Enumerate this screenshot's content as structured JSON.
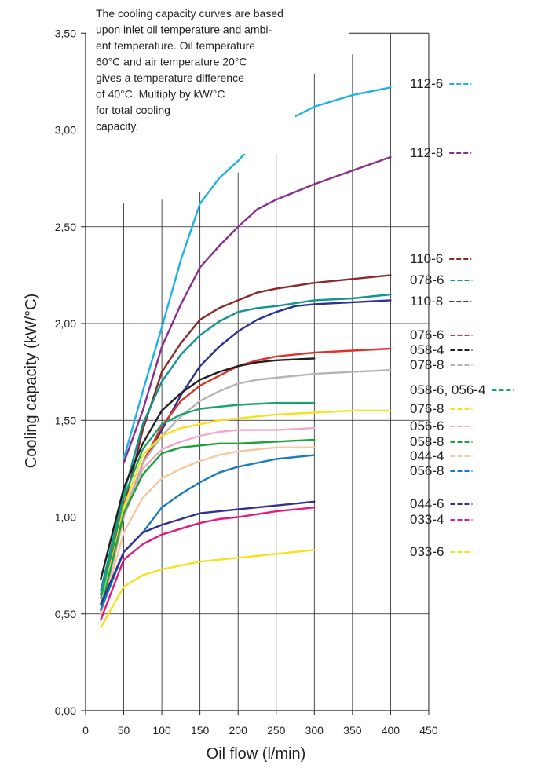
{
  "chart_data": {
    "type": "line",
    "xlabel": "Oil flow (l/min)",
    "ylabel": "Cooling capacity (kW/°C)",
    "xlim": [
      0,
      450
    ],
    "ylim": [
      0,
      3.5
    ],
    "x_ticks": [
      "0",
      "50",
      "100",
      "150",
      "200",
      "250",
      "300",
      "350",
      "400",
      "450"
    ],
    "y_ticks": [
      "0,00",
      "0,50",
      "1,00",
      "1,50",
      "2,00",
      "2,50",
      "3,00",
      "3,50"
    ],
    "grid": true,
    "legend_placement": "right",
    "annotation": [
      "The cooling capacity curves are based",
      "upon inlet oil temperature and ambi-",
      "ent temperature. Oil temperature",
      "60°C and air temperature 20°C",
      "gives a temperature difference",
      "of 40°C. Multiply by kW/°C",
      "for total cooling",
      "capacity."
    ],
    "series": [
      {
        "name": "112-6",
        "color": "#1fb3e5",
        "x": [
          50,
          75,
          100,
          125,
          150,
          175,
          200,
          225,
          250,
          275,
          300,
          350,
          400
        ],
        "y": [
          1.3,
          1.65,
          1.98,
          2.33,
          2.62,
          2.75,
          2.84,
          2.95,
          3.0,
          3.07,
          3.12,
          3.18,
          3.22
        ]
      },
      {
        "name": "112-8",
        "color": "#8b2f8f",
        "x": [
          50,
          75,
          100,
          125,
          150,
          175,
          200,
          225,
          250,
          275,
          300,
          350,
          400
        ],
        "y": [
          1.28,
          1.55,
          1.88,
          2.1,
          2.29,
          2.4,
          2.5,
          2.59,
          2.64,
          2.68,
          2.72,
          2.79,
          2.86
        ]
      },
      {
        "name": "110-6",
        "color": "#8a2a2b",
        "x": [
          20,
          50,
          75,
          100,
          125,
          150,
          175,
          200,
          225,
          250,
          300,
          350,
          400
        ],
        "y": [
          0.6,
          1.05,
          1.45,
          1.75,
          1.9,
          2.02,
          2.08,
          2.12,
          2.16,
          2.18,
          2.21,
          2.23,
          2.25
        ]
      },
      {
        "name": "078-6",
        "color": "#12958f",
        "x": [
          20,
          50,
          75,
          100,
          125,
          150,
          175,
          200,
          225,
          250,
          300,
          350,
          400
        ],
        "y": [
          0.62,
          1.12,
          1.48,
          1.7,
          1.84,
          1.94,
          2.01,
          2.06,
          2.08,
          2.09,
          2.12,
          2.13,
          2.15
        ]
      },
      {
        "name": "110-8",
        "color": "#2e3192",
        "x": [
          20,
          50,
          75,
          100,
          125,
          150,
          175,
          200,
          225,
          250,
          275,
          300,
          350,
          400
        ],
        "y": [
          0.55,
          1.0,
          1.28,
          1.45,
          1.63,
          1.78,
          1.88,
          1.96,
          2.02,
          2.06,
          2.09,
          2.1,
          2.11,
          2.12
        ]
      },
      {
        "name": "076-6",
        "color": "#e0322b",
        "x": [
          20,
          50,
          75,
          100,
          125,
          150,
          175,
          200,
          225,
          250,
          300,
          350,
          400
        ],
        "y": [
          0.5,
          1.0,
          1.28,
          1.47,
          1.6,
          1.68,
          1.73,
          1.78,
          1.81,
          1.83,
          1.85,
          1.86,
          1.87
        ]
      },
      {
        "name": "058-4",
        "color": "#231f20",
        "x": [
          20,
          50,
          75,
          100,
          125,
          150,
          175,
          200,
          225,
          250,
          300
        ],
        "y": [
          0.68,
          1.15,
          1.38,
          1.55,
          1.64,
          1.71,
          1.75,
          1.78,
          1.8,
          1.81,
          1.82
        ]
      },
      {
        "name": "078-8",
        "color": "#b5b5b5",
        "x": [
          20,
          50,
          75,
          100,
          125,
          150,
          175,
          200,
          225,
          250,
          300,
          350,
          400
        ],
        "y": [
          0.55,
          1.02,
          1.28,
          1.42,
          1.52,
          1.6,
          1.65,
          1.69,
          1.71,
          1.72,
          1.74,
          1.75,
          1.76
        ]
      },
      {
        "name": "058-6, 056-4",
        "color": "#1aa36b",
        "x": [
          20,
          50,
          75,
          100,
          125,
          150,
          175,
          200,
          250,
          300
        ],
        "y": [
          0.58,
          1.1,
          1.35,
          1.48,
          1.53,
          1.56,
          1.57,
          1.58,
          1.59,
          1.59
        ]
      },
      {
        "name": "076-8",
        "color": "#f5e21f",
        "x": [
          20,
          50,
          75,
          100,
          125,
          150,
          175,
          200,
          250,
          300,
          350,
          400
        ],
        "y": [
          0.52,
          1.05,
          1.32,
          1.42,
          1.46,
          1.48,
          1.5,
          1.51,
          1.53,
          1.54,
          1.55,
          1.55
        ]
      },
      {
        "name": "056-6",
        "color": "#f0a8c8",
        "x": [
          20,
          50,
          75,
          100,
          125,
          150,
          175,
          200,
          250,
          300
        ],
        "y": [
          0.5,
          1.0,
          1.25,
          1.35,
          1.39,
          1.42,
          1.44,
          1.45,
          1.45,
          1.46
        ]
      },
      {
        "name": "058-8",
        "color": "#1aa33a",
        "x": [
          20,
          50,
          75,
          100,
          125,
          150,
          175,
          200,
          250,
          300
        ],
        "y": [
          0.52,
          1.02,
          1.22,
          1.33,
          1.36,
          1.37,
          1.38,
          1.38,
          1.39,
          1.4
        ]
      },
      {
        "name": "044-4",
        "color": "#f5c8a0",
        "x": [
          20,
          50,
          75,
          100,
          125,
          150,
          175,
          200,
          250,
          300
        ],
        "y": [
          0.5,
          0.92,
          1.1,
          1.2,
          1.25,
          1.29,
          1.32,
          1.34,
          1.36,
          1.36
        ]
      },
      {
        "name": "056-8",
        "color": "#1a7abf",
        "x": [
          20,
          50,
          75,
          100,
          125,
          150,
          175,
          200,
          250,
          300
        ],
        "y": [
          0.52,
          0.82,
          0.92,
          1.05,
          1.12,
          1.18,
          1.23,
          1.26,
          1.3,
          1.32
        ]
      },
      {
        "name": "044-6",
        "color": "#2e3192",
        "x": [
          20,
          50,
          75,
          100,
          125,
          150,
          175,
          200,
          250,
          300
        ],
        "y": [
          0.55,
          0.82,
          0.92,
          0.96,
          0.99,
          1.02,
          1.03,
          1.04,
          1.06,
          1.08
        ]
      },
      {
        "name": "033-4",
        "color": "#e5197f",
        "x": [
          20,
          50,
          75,
          100,
          125,
          150,
          175,
          200,
          250,
          300
        ],
        "y": [
          0.47,
          0.78,
          0.86,
          0.91,
          0.94,
          0.97,
          0.99,
          1.0,
          1.03,
          1.05
        ]
      },
      {
        "name": "033-6",
        "color": "#f5e21f",
        "x": [
          20,
          50,
          75,
          100,
          125,
          150,
          175,
          200,
          250,
          300
        ],
        "y": [
          0.43,
          0.64,
          0.7,
          0.73,
          0.75,
          0.77,
          0.78,
          0.79,
          0.81,
          0.83
        ]
      }
    ]
  }
}
